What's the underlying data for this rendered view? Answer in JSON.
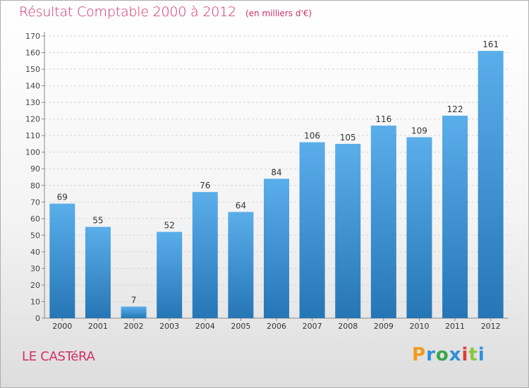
{
  "header": {
    "title": "Résultat Comptable 2000 à 2012",
    "unit": "(en milliers d'€)"
  },
  "footer": {
    "place": "LE CASTéRA",
    "brand": "Proxiti",
    "brand_colors": [
      "#f29a1c",
      "#2f8fdc",
      "#3aa64b",
      "#2f8fdc",
      "#e23a3a",
      "#8cc63f",
      "#2f8fdc"
    ]
  },
  "chart_data": {
    "type": "bar",
    "categories": [
      "2000",
      "2001",
      "2002",
      "2003",
      "2004",
      "2005",
      "2006",
      "2007",
      "2008",
      "2009",
      "2010",
      "2011",
      "2012"
    ],
    "values": [
      69,
      55,
      7,
      52,
      76,
      64,
      84,
      106,
      105,
      116,
      109,
      122,
      161
    ],
    "ylim": [
      0,
      170
    ],
    "yticks": [
      0,
      10,
      20,
      30,
      40,
      50,
      60,
      70,
      80,
      90,
      100,
      110,
      120,
      130,
      140,
      150,
      160,
      170
    ],
    "grid": true,
    "bar_color_top": "#5aaeea",
    "bar_color_bottom": "#2676b6",
    "title": "Résultat Comptable 2000 à 2012",
    "xlabel": "",
    "ylabel": ""
  }
}
